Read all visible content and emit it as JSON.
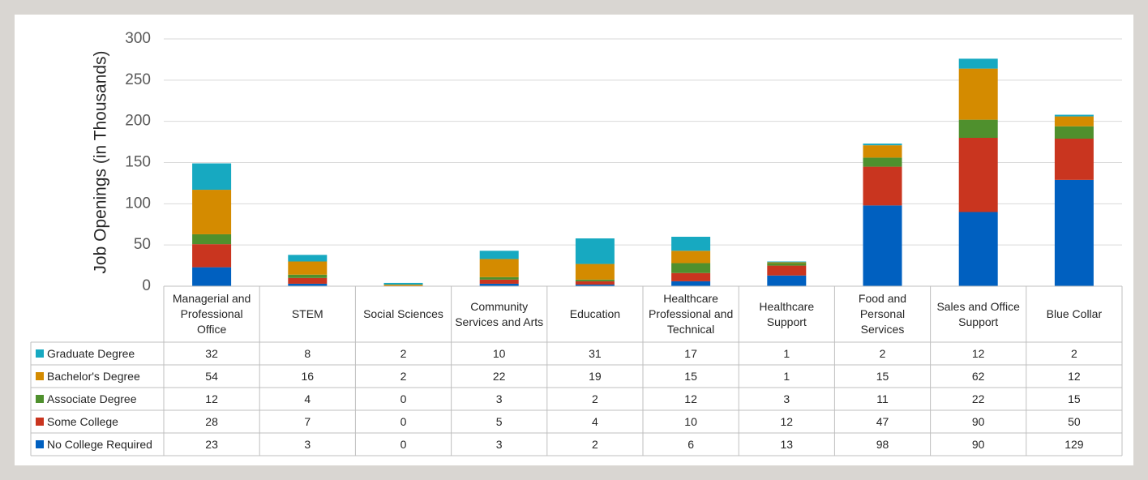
{
  "chart_data": {
    "type": "bar",
    "stacked": true,
    "y_label": "Job Openings (in Thousands)",
    "categories": [
      "Managerial and Professional Office",
      "STEM",
      "Social Sciences",
      "Community Services and Arts",
      "Education",
      "Healthcare Professional and Technical",
      "Healthcare Support",
      "Food and Personal Services",
      "Sales and Office Support",
      "Blue Collar"
    ],
    "series": [
      {
        "name": "Graduate Degree",
        "color": "#17a9c1",
        "values": [
          32,
          8,
          2,
          10,
          31,
          17,
          1,
          2,
          12,
          2
        ]
      },
      {
        "name": "Bachelor's Degree",
        "color": "#d48b00",
        "values": [
          54,
          16,
          2,
          22,
          19,
          15,
          1,
          15,
          62,
          12
        ]
      },
      {
        "name": "Associate Degree",
        "color": "#4f902d",
        "values": [
          12,
          4,
          0,
          3,
          2,
          12,
          3,
          11,
          22,
          15
        ]
      },
      {
        "name": "Some College",
        "color": "#c9351f",
        "values": [
          28,
          7,
          0,
          5,
          4,
          10,
          12,
          47,
          90,
          50
        ]
      },
      {
        "name": "No College Required",
        "color": "#0060c0",
        "values": [
          23,
          3,
          0,
          3,
          2,
          6,
          13,
          98,
          90,
          129
        ]
      }
    ],
    "ylim": [
      0,
      300
    ],
    "yticks": [
      0,
      50,
      100,
      150,
      200,
      250,
      300
    ],
    "grid": true
  }
}
